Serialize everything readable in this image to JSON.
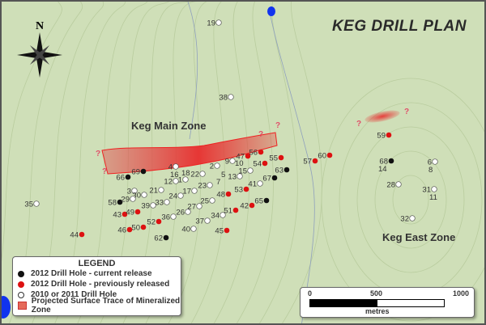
{
  "title": "KEG DRILL PLAN",
  "compass_label": "N",
  "zones": {
    "main": "Keg Main Zone",
    "east": "Keg East Zone"
  },
  "uncertain_marker": "?",
  "colors": {
    "current": "#111111",
    "previous": "#dd1111",
    "prior": "#ffffff",
    "trace": "#e83a3a",
    "water": "#1133ee",
    "background": "#cfdfb8"
  },
  "legend": {
    "title": "LEGEND",
    "items": [
      {
        "label": "2012 Drill Hole - current release",
        "symbol": "black-dot"
      },
      {
        "label": "2012 Drill Hole - previously released",
        "symbol": "red-dot"
      },
      {
        "label": "2010 or 2011 Drill Hole",
        "symbol": "white-dot"
      },
      {
        "label": "Projected Surface Trace of Mineralized Zone",
        "symbol": "red-square"
      }
    ]
  },
  "scale_bar": {
    "ticks": [
      "0",
      "500",
      "1000"
    ],
    "unit": "metres"
  },
  "drill_holes": [
    {
      "id": "69",
      "type": "current"
    },
    {
      "id": "66",
      "type": "current"
    },
    {
      "id": "58",
      "type": "current"
    },
    {
      "id": "62",
      "type": "current"
    },
    {
      "id": "63",
      "type": "current"
    },
    {
      "id": "67",
      "type": "current"
    },
    {
      "id": "65",
      "type": "current"
    },
    {
      "id": "68",
      "type": "current"
    },
    {
      "id": "47",
      "type": "previous"
    },
    {
      "id": "56",
      "type": "previous"
    },
    {
      "id": "55",
      "type": "previous"
    },
    {
      "id": "54",
      "type": "previous"
    },
    {
      "id": "57",
      "type": "previous"
    },
    {
      "id": "60",
      "type": "previous"
    },
    {
      "id": "53",
      "type": "previous"
    },
    {
      "id": "48",
      "type": "previous"
    },
    {
      "id": "42",
      "type": "previous"
    },
    {
      "id": "51",
      "type": "previous"
    },
    {
      "id": "45",
      "type": "previous"
    },
    {
      "id": "43",
      "type": "previous"
    },
    {
      "id": "49",
      "type": "previous"
    },
    {
      "id": "52",
      "type": "previous"
    },
    {
      "id": "50",
      "type": "previous"
    },
    {
      "id": "46",
      "type": "previous"
    },
    {
      "id": "59",
      "type": "previous"
    },
    {
      "id": "44",
      "type": "previous"
    },
    {
      "id": "4",
      "type": "prior"
    },
    {
      "id": "16",
      "type": "prior"
    },
    {
      "id": "18",
      "type": "prior"
    },
    {
      "id": "12",
      "type": "prior"
    },
    {
      "id": "1",
      "type": "prior"
    },
    {
      "id": "22",
      "type": "prior"
    },
    {
      "id": "23",
      "type": "prior"
    },
    {
      "id": "3",
      "type": "prior"
    },
    {
      "id": "30",
      "type": "prior"
    },
    {
      "id": "29",
      "type": "prior"
    },
    {
      "id": "21",
      "type": "prior"
    },
    {
      "id": "24",
      "type": "prior"
    },
    {
      "id": "17",
      "type": "prior"
    },
    {
      "id": "33",
      "type": "prior"
    },
    {
      "id": "39",
      "type": "prior"
    },
    {
      "id": "27",
      "type": "prior"
    },
    {
      "id": "26",
      "type": "prior"
    },
    {
      "id": "36",
      "type": "prior"
    },
    {
      "id": "37",
      "type": "prior"
    },
    {
      "id": "40",
      "type": "prior"
    },
    {
      "id": "25",
      "type": "prior"
    },
    {
      "id": "2",
      "type": "prior"
    },
    {
      "id": "9",
      "type": "prior"
    },
    {
      "id": "10",
      "type": "prior"
    },
    {
      "id": "15",
      "type": "prior"
    },
    {
      "id": "13",
      "type": "prior"
    },
    {
      "id": "5",
      "type": "prior"
    },
    {
      "id": "7",
      "type": "prior"
    },
    {
      "id": "41",
      "type": "prior"
    },
    {
      "id": "34",
      "type": "prior"
    },
    {
      "id": "19",
      "type": "prior"
    },
    {
      "id": "38",
      "type": "prior"
    },
    {
      "id": "35",
      "type": "prior"
    },
    {
      "id": "14",
      "type": "prior"
    },
    {
      "id": "6",
      "type": "prior"
    },
    {
      "id": "8",
      "type": "prior"
    },
    {
      "id": "28",
      "type": "prior"
    },
    {
      "id": "31",
      "type": "prior"
    },
    {
      "id": "11",
      "type": "prior"
    },
    {
      "id": "32",
      "type": "prior"
    }
  ]
}
